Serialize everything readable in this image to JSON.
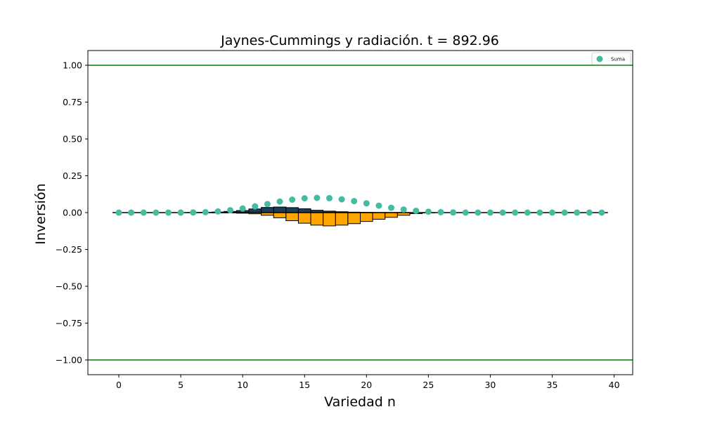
{
  "chart_data": {
    "type": "bar",
    "title": "Jaynes-Cummings y radiación. t = 892.96",
    "xlabel": "Variedad n",
    "ylabel": "Inversión",
    "xlim": [
      -2.5,
      41.5
    ],
    "ylim": [
      -1.1,
      1.1
    ],
    "xticks": [
      0,
      5,
      10,
      15,
      20,
      25,
      30,
      35,
      40
    ],
    "xtick_labels": [
      "0",
      "5",
      "10",
      "15",
      "20",
      "25",
      "30",
      "35",
      "40"
    ],
    "yticks": [
      1.0,
      0.75,
      0.5,
      0.25,
      0.0,
      -0.25,
      -0.5,
      -0.75,
      -1.0
    ],
    "ytick_labels": [
      "1.00",
      "0.75",
      "0.50",
      "0.25",
      "0.00",
      "−0.25",
      "−0.50",
      "−0.75",
      "−1.00"
    ],
    "grid": false,
    "legend_position": "top-right",
    "reference_lines": [
      1.0,
      -1.0
    ],
    "reference_line_color": "#008000",
    "baseline": {
      "y": 0,
      "x_from": -0.5,
      "x_to": 39.5,
      "color": "#000000"
    },
    "series": [
      {
        "kind": "bar",
        "color": "#1c3d5a",
        "x": [
          6,
          7,
          8,
          9,
          10,
          11,
          12,
          13,
          14,
          15,
          16,
          17,
          18,
          19,
          20,
          21,
          22,
          23,
          24,
          25
        ],
        "values": [
          0.001,
          0.002,
          0.004,
          0.008,
          0.014,
          0.025,
          0.035,
          0.038,
          0.034,
          0.026,
          0.016,
          0.01,
          0.006,
          0.003,
          0.002,
          0.001,
          0.001,
          0.001,
          0.0,
          0.0
        ]
      },
      {
        "kind": "bar",
        "color": "#ffa500",
        "x": [
          8,
          9,
          10,
          11,
          12,
          13,
          14,
          15,
          16,
          17,
          18,
          19,
          20,
          21,
          22,
          23,
          24,
          25
        ],
        "values": [
          -0.001,
          -0.002,
          -0.004,
          -0.008,
          -0.018,
          -0.035,
          -0.055,
          -0.072,
          -0.085,
          -0.09,
          -0.085,
          -0.075,
          -0.06,
          -0.045,
          -0.032,
          -0.018,
          -0.007,
          -0.002
        ]
      },
      {
        "name": "Suma",
        "kind": "scatter",
        "color": "#45bba2",
        "x": [
          0,
          1,
          2,
          3,
          4,
          5,
          6,
          7,
          8,
          9,
          10,
          11,
          12,
          13,
          14,
          15,
          16,
          17,
          18,
          19,
          20,
          21,
          22,
          23,
          24,
          25,
          26,
          27,
          28,
          29,
          30,
          31,
          32,
          33,
          34,
          35,
          36,
          37,
          38,
          39
        ],
        "values": [
          0,
          0,
          0,
          0,
          0,
          0,
          0.001,
          0.003,
          0.008,
          0.016,
          0.028,
          0.042,
          0.058,
          0.075,
          0.088,
          0.097,
          0.1,
          0.098,
          0.09,
          0.078,
          0.063,
          0.047,
          0.033,
          0.021,
          0.012,
          0.006,
          0.003,
          0.001,
          0,
          0,
          0,
          0,
          0,
          0,
          0,
          0,
          0,
          0,
          0,
          0
        ]
      }
    ]
  }
}
